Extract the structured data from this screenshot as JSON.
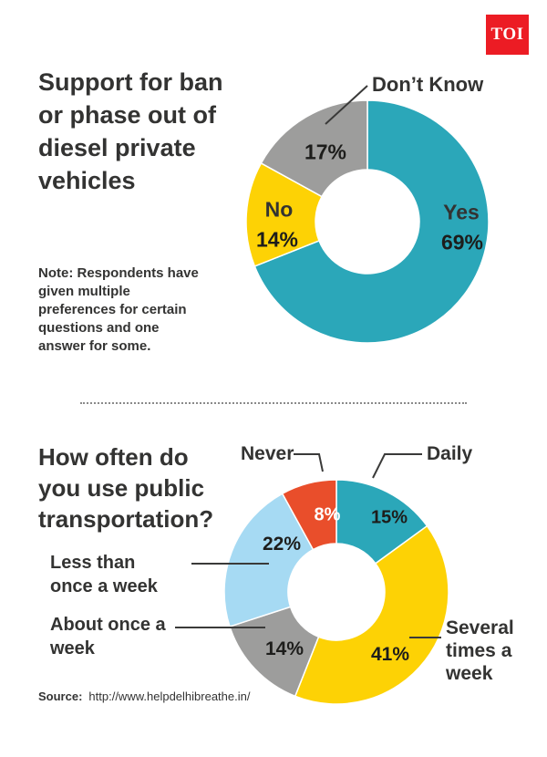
{
  "logo": {
    "text": "TOI",
    "bg_color": "#EC1C24"
  },
  "chart_data": [
    {
      "type": "pie",
      "donut": true,
      "title": "Support for ban or phase out of diesel private vehicles",
      "note": "Note: Respondents have given multiple preferences for certain questions and one answer for some.",
      "categories": [
        "Yes",
        "No",
        "Don’t Know"
      ],
      "values": [
        69,
        14,
        17
      ],
      "labels": [
        "69%",
        "14%",
        "17%"
      ],
      "colors": [
        "#2BA7B9",
        "#FDD205",
        "#9D9D9C"
      ],
      "start_angle_deg": 0,
      "direction": "clockwise",
      "legend": "none"
    },
    {
      "type": "pie",
      "donut": true,
      "title": "How often do you use public transportation?",
      "categories": [
        "Daily",
        "Several times a week",
        "About once a week",
        "Less than once a week",
        "Never"
      ],
      "values": [
        15,
        41,
        14,
        22,
        8
      ],
      "labels": [
        "15%",
        "41%",
        "14%",
        "22%",
        "8%"
      ],
      "colors": [
        "#2BA7B9",
        "#FDD205",
        "#9D9D9C",
        "#A6DAF3",
        "#E94E2B"
      ],
      "start_angle_deg": 0,
      "direction": "clockwise",
      "legend": "none"
    }
  ],
  "footer": {
    "source_label": "Source:",
    "source_url": "http://www.helpdelhibreathe.in/"
  }
}
